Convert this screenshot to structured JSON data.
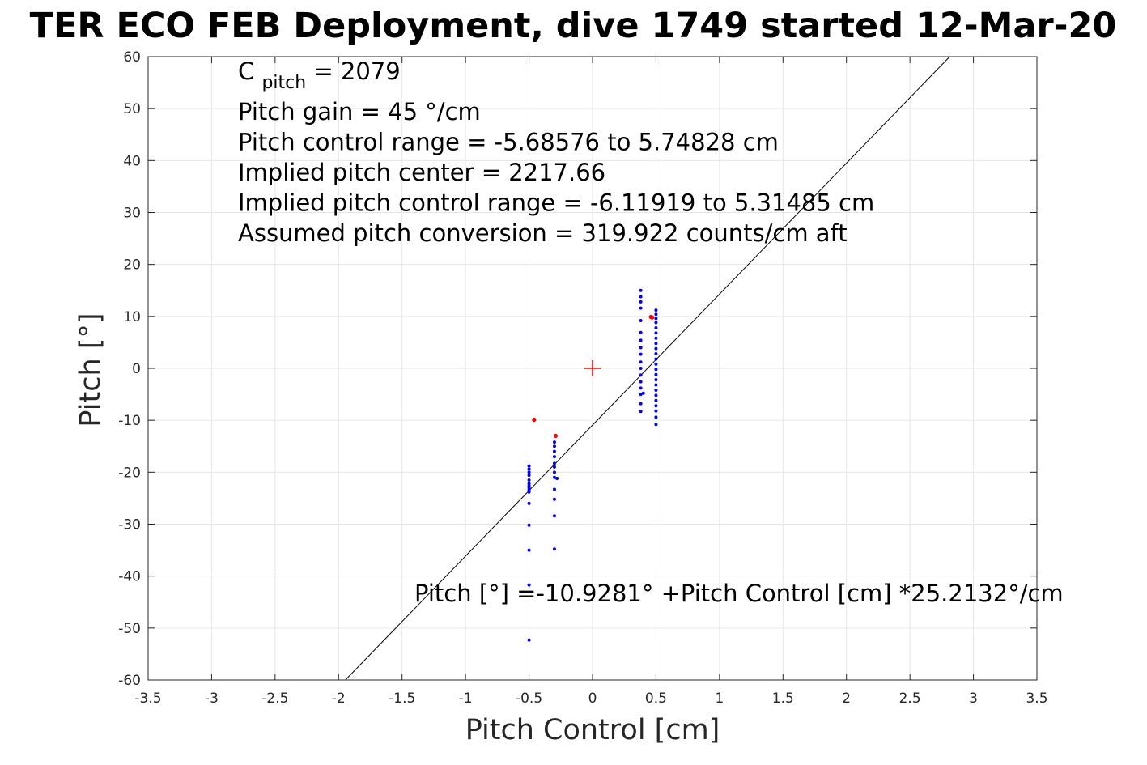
{
  "chart_data": {
    "type": "scatter",
    "title": "TER ECO FEB Deployment, dive 1749 started 12-Mar-20",
    "xlabel": "Pitch Control [cm]",
    "ylabel": "Pitch [°]",
    "xlim": [
      -3.5,
      3.5
    ],
    "ylim": [
      -60,
      60
    ],
    "x_ticks": [
      "-3.5",
      "-3",
      "-2.5",
      "-2",
      "-1.5",
      "-1",
      "-0.5",
      "0",
      "0.5",
      "1",
      "1.5",
      "2",
      "2.5",
      "3",
      "3.5"
    ],
    "y_ticks": [
      "60",
      "50",
      "40",
      "30",
      "20",
      "10",
      "0",
      "-10",
      "-20",
      "-30",
      "-40",
      "-50",
      "-60"
    ],
    "grid": true,
    "annotations": {
      "c_pitch": {
        "prefix": "C",
        "sub": "pitch",
        "suffix": " = 2079"
      },
      "lines": [
        "Pitch gain = 45 °/cm",
        "Pitch control range = -5.68576 to 5.74828 cm",
        "Implied pitch center = 2217.66",
        "Implied pitch control range = -6.11919 to 5.31485 cm",
        "Assumed pitch conversion = 319.922 counts/cm aft"
      ],
      "fit_equation": "Pitch [°] =-10.9281° +Pitch Control [cm] *25.2132°/cm"
    },
    "fit_line": {
      "intercept": -10.9281,
      "slope": 25.2132
    },
    "center_marker": {
      "x": 0,
      "y": 0,
      "color": "#ff0000"
    },
    "series": [
      {
        "color": "#0000ff",
        "points": [
          [
            -0.5,
            -18.8
          ],
          [
            -0.5,
            -19.4
          ],
          [
            -0.5,
            -20.0
          ],
          [
            -0.5,
            -20.6
          ],
          [
            -0.5,
            -21.5
          ],
          [
            -0.5,
            -22.2
          ],
          [
            -0.5,
            -22.6
          ],
          [
            -0.5,
            -23.0
          ],
          [
            -0.5,
            -23.4
          ],
          [
            -0.5,
            -23.8
          ],
          [
            -0.5,
            -26.0
          ],
          [
            -0.5,
            -30.2
          ],
          [
            -0.5,
            -35.0
          ],
          [
            -0.5,
            -41.7
          ],
          [
            -0.5,
            -52.3
          ],
          [
            -0.3,
            -14.2
          ],
          [
            -0.3,
            -15.0
          ],
          [
            -0.3,
            -16.0
          ],
          [
            -0.3,
            -17.0
          ],
          [
            -0.3,
            -18.3
          ],
          [
            -0.3,
            -19.0
          ],
          [
            -0.3,
            -20.0
          ],
          [
            -0.3,
            -21.0
          ],
          [
            -0.3,
            -23.3
          ],
          [
            -0.3,
            -25.2
          ],
          [
            -0.3,
            -28.4
          ],
          [
            -0.3,
            -34.8
          ],
          [
            -0.28,
            -21.2
          ],
          [
            0.38,
            15.0
          ],
          [
            0.38,
            13.8
          ],
          [
            0.38,
            12.8
          ],
          [
            0.38,
            11.6
          ],
          [
            0.38,
            9.2
          ],
          [
            0.38,
            6.9
          ],
          [
            0.38,
            5.4
          ],
          [
            0.38,
            4.0
          ],
          [
            0.38,
            2.7
          ],
          [
            0.38,
            1.2
          ],
          [
            0.38,
            0.0
          ],
          [
            0.38,
            -1.3
          ],
          [
            0.38,
            -2.6
          ],
          [
            0.38,
            -3.8
          ],
          [
            0.38,
            -5.0
          ],
          [
            0.38,
            -6.8
          ],
          [
            0.38,
            -8.3
          ],
          [
            0.4,
            -4.8
          ],
          [
            0.5,
            11.2
          ],
          [
            0.5,
            10.4
          ],
          [
            0.5,
            9.6
          ],
          [
            0.5,
            8.8
          ],
          [
            0.5,
            7.8
          ],
          [
            0.5,
            6.8
          ],
          [
            0.5,
            5.8
          ],
          [
            0.5,
            4.8
          ],
          [
            0.5,
            3.8
          ],
          [
            0.5,
            2.8
          ],
          [
            0.5,
            1.8
          ],
          [
            0.5,
            0.8
          ],
          [
            0.5,
            -0.2
          ],
          [
            0.5,
            -1.2
          ],
          [
            0.5,
            -2.2
          ],
          [
            0.5,
            -3.2
          ],
          [
            0.5,
            -4.2
          ],
          [
            0.5,
            -5.2
          ],
          [
            0.5,
            -6.2
          ],
          [
            0.5,
            -7.2
          ],
          [
            0.5,
            -8.2
          ],
          [
            0.5,
            -9.4
          ],
          [
            0.5,
            -10.8
          ]
        ]
      },
      {
        "color": "#ff0000",
        "points": [
          [
            -0.46,
            -9.9
          ],
          [
            -0.29,
            -13.0
          ],
          [
            0.46,
            9.9
          ],
          [
            0.47,
            9.8
          ]
        ]
      }
    ]
  }
}
